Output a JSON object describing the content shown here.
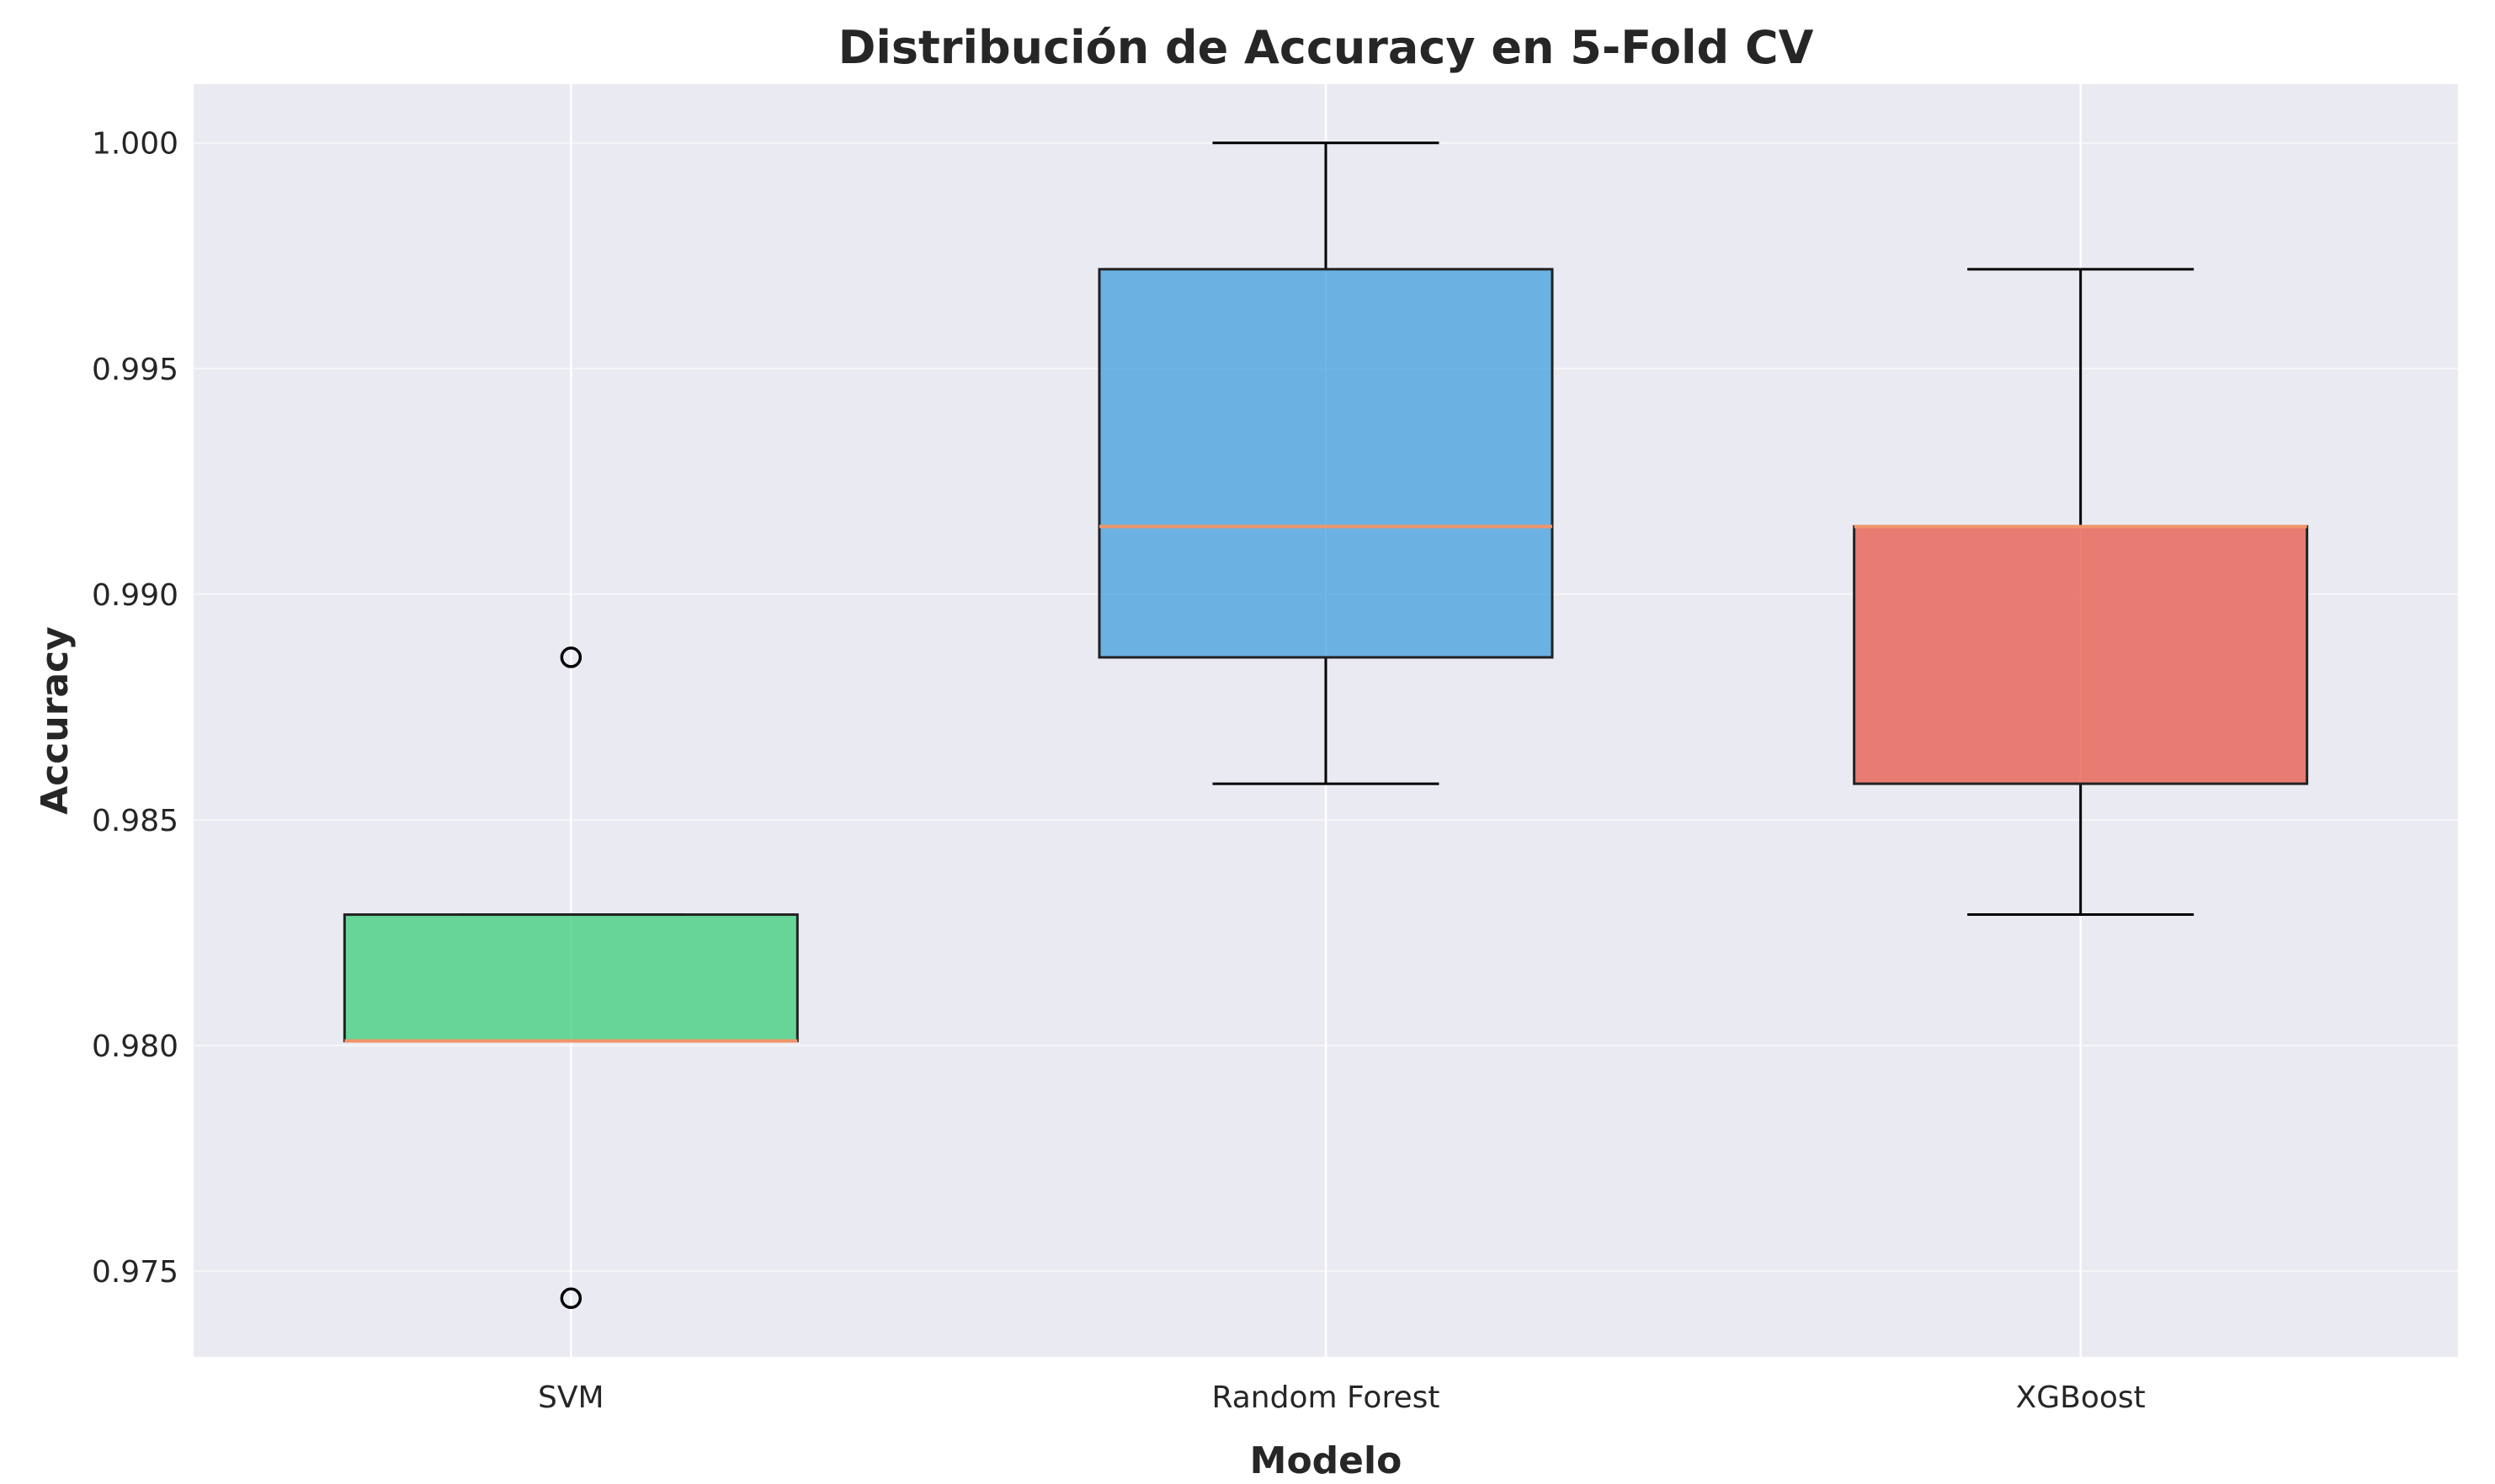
{
  "chart_data": {
    "type": "box",
    "title": "Distribución de Accuracy en 5-Fold CV",
    "xlabel": "Modelo",
    "ylabel": "Accuracy",
    "ylim": [
      0.9731,
      1.0013
    ],
    "yticks": [
      0.975,
      0.98,
      0.985,
      0.99,
      0.995,
      1.0
    ],
    "ytick_labels": [
      "0.975",
      "0.980",
      "0.985",
      "0.990",
      "0.995",
      "1.000"
    ],
    "grid": true,
    "categories": [
      "SVM",
      "Random Forest",
      "XGBoost"
    ],
    "series": [
      {
        "category": "SVM",
        "color": "#2ecc71",
        "whisker_low": 0.9801,
        "q1": 0.9801,
        "median": 0.9801,
        "q3": 0.9829,
        "whisker_high": 0.9829,
        "outliers": [
          0.9886,
          0.9744
        ]
      },
      {
        "category": "Random Forest",
        "color": "#3498db",
        "whisker_low": 0.9858,
        "q1": 0.9886,
        "median": 0.9915,
        "q3": 0.9972,
        "whisker_high": 1.0,
        "outliers": []
      },
      {
        "category": "XGBoost",
        "color": "#e74c3c",
        "whisker_low": 0.9829,
        "q1": 0.9858,
        "median": 0.9915,
        "q3": 0.9915,
        "whisker_high": 0.9972,
        "outliers": []
      }
    ],
    "median_color": "#f0956a",
    "plot_background": "#eaeaf2"
  }
}
